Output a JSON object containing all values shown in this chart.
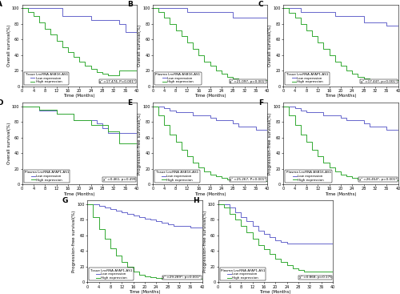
{
  "panels": [
    {
      "label": "A",
      "title_box": "Tissue LncRNA ASB16-AS1",
      "legend_low": "Low expression",
      "legend_high": "High expression",
      "stat": "χ² =17.474, P=0.001*",
      "ylabel": "Overall survival(%)",
      "xlabel": "Time (Months)",
      "xlim": [
        0,
        40
      ],
      "ylim": [
        0,
        105
      ],
      "low_x": [
        0,
        2,
        4,
        12,
        14,
        22,
        24,
        32,
        34,
        36,
        40
      ],
      "low_y": [
        100,
        100,
        100,
        100,
        90,
        90,
        85,
        85,
        80,
        70,
        70
      ],
      "high_x": [
        0,
        2,
        4,
        6,
        8,
        10,
        12,
        14,
        16,
        18,
        20,
        22,
        24,
        26,
        28,
        30,
        32,
        34,
        40
      ],
      "high_y": [
        100,
        95,
        90,
        82,
        74,
        66,
        58,
        50,
        44,
        38,
        32,
        26,
        22,
        18,
        16,
        14,
        14,
        20,
        20
      ]
    },
    {
      "label": "B",
      "title_box": "Plasma LncRNA ASB16-AS1",
      "legend_low": "Low expression",
      "legend_high": "High expression",
      "stat": "χ² =21.097, p=0.001*",
      "ylabel": "Overall survival(%)",
      "xlabel": "Time (Months)",
      "xlim": [
        0,
        40
      ],
      "ylim": [
        0,
        105
      ],
      "low_x": [
        0,
        10,
        12,
        26,
        28,
        40
      ],
      "low_y": [
        100,
        100,
        95,
        95,
        88,
        88
      ],
      "high_x": [
        0,
        2,
        4,
        6,
        8,
        10,
        12,
        14,
        16,
        18,
        20,
        22,
        24,
        26,
        28,
        30,
        34,
        40
      ],
      "high_y": [
        100,
        95,
        88,
        80,
        72,
        64,
        56,
        48,
        40,
        32,
        26,
        20,
        16,
        12,
        10,
        8,
        8,
        8
      ]
    },
    {
      "label": "C",
      "title_box": "Tissue LncRNA AFAP1-AS1",
      "legend_low": "Low expression",
      "legend_high": "High expression",
      "stat": "χ² =17.447, p=0.001*",
      "ylabel": "Overall survival(%)",
      "xlabel": "Time (Months)",
      "xlim": [
        0,
        40
      ],
      "ylim": [
        0,
        105
      ],
      "low_x": [
        0,
        4,
        6,
        16,
        18,
        26,
        28,
        34,
        36,
        40
      ],
      "low_y": [
        100,
        100,
        95,
        95,
        90,
        90,
        82,
        82,
        78,
        78
      ],
      "high_x": [
        0,
        2,
        4,
        6,
        8,
        10,
        12,
        14,
        16,
        18,
        20,
        22,
        24,
        26,
        28,
        30,
        32,
        40
      ],
      "high_y": [
        100,
        94,
        88,
        80,
        72,
        64,
        56,
        48,
        40,
        32,
        26,
        20,
        16,
        12,
        10,
        8,
        8,
        8
      ]
    },
    {
      "label": "D",
      "title_box": "Plasma LncRNA AFAP1-AS1",
      "legend_low": "Low expression",
      "legend_high": "High expression",
      "stat": "χ² =0.461, p=0.499",
      "ylabel": "Overall survival(%)",
      "xlabel": "Time (Months)",
      "xlim": [
        0,
        40
      ],
      "ylim": [
        0,
        105
      ],
      "low_x": [
        0,
        4,
        6,
        10,
        12,
        16,
        18,
        24,
        26,
        28,
        30,
        34,
        40
      ],
      "low_y": [
        100,
        100,
        95,
        95,
        90,
        90,
        82,
        82,
        78,
        72,
        66,
        66,
        62
      ],
      "high_x": [
        0,
        4,
        6,
        10,
        12,
        16,
        18,
        22,
        24,
        28,
        30,
        34,
        40
      ],
      "high_y": [
        100,
        100,
        96,
        96,
        90,
        90,
        82,
        82,
        76,
        76,
        68,
        52,
        42
      ]
    },
    {
      "label": "E",
      "title_box": "Tissue LncRNA ASB16-AS1",
      "legend_low": "Low expression",
      "legend_high": "High expression",
      "stat": "χ² =25.267, P=0.001*",
      "ylabel": "Progression-free survival(%)",
      "xlabel": "Time (Months)",
      "xlim": [
        0,
        40
      ],
      "ylim": [
        0,
        105
      ],
      "low_x": [
        0,
        2,
        4,
        6,
        8,
        12,
        14,
        18,
        20,
        22,
        26,
        28,
        30,
        34,
        36,
        40
      ],
      "low_y": [
        100,
        100,
        98,
        95,
        92,
        92,
        88,
        88,
        85,
        82,
        82,
        78,
        74,
        74,
        70,
        70
      ],
      "high_x": [
        0,
        2,
        4,
        6,
        8,
        10,
        12,
        14,
        16,
        18,
        20,
        22,
        24,
        26,
        28,
        30,
        34,
        40
      ],
      "high_y": [
        100,
        88,
        76,
        64,
        54,
        44,
        36,
        28,
        22,
        16,
        12,
        10,
        8,
        6,
        5,
        4,
        4,
        4
      ]
    },
    {
      "label": "F",
      "title_box": "Plasma LncRNA ASB16-AS1",
      "legend_low": "Low expression",
      "legend_high": "High expression",
      "stat": "χ² =26.454*, p=0.001*",
      "ylabel": "Progression-free survival(%)",
      "xlabel": "Time (Months)",
      "xlim": [
        0,
        40
      ],
      "ylim": [
        0,
        105
      ],
      "low_x": [
        0,
        2,
        4,
        6,
        8,
        12,
        14,
        18,
        20,
        22,
        26,
        28,
        30,
        34,
        36,
        40
      ],
      "low_y": [
        100,
        100,
        98,
        95,
        92,
        92,
        88,
        88,
        85,
        82,
        82,
        78,
        74,
        74,
        70,
        70
      ],
      "high_x": [
        0,
        2,
        4,
        6,
        8,
        10,
        12,
        14,
        16,
        18,
        20,
        22,
        24,
        26,
        28,
        30,
        34,
        40
      ],
      "high_y": [
        100,
        88,
        76,
        64,
        54,
        44,
        36,
        28,
        22,
        16,
        12,
        10,
        8,
        6,
        5,
        5,
        5,
        5
      ]
    },
    {
      "label": "G",
      "title_box": "Tissue LncRNA AFAP1-AS1",
      "legend_low": "Low expression",
      "legend_high": "High expression",
      "stat": "χ² =29.289*, p=0.001*",
      "ylabel": "Progression-free survival(%)",
      "xlabel": "Time (Months)",
      "xlim": [
        0,
        40
      ],
      "ylim": [
        0,
        105
      ],
      "low_x": [
        0,
        2,
        4,
        6,
        8,
        10,
        12,
        14,
        16,
        18,
        20,
        22,
        24,
        26,
        28,
        30,
        32,
        34,
        36,
        40
      ],
      "low_y": [
        100,
        100,
        98,
        96,
        94,
        92,
        90,
        88,
        86,
        84,
        82,
        80,
        78,
        76,
        74,
        72,
        72,
        72,
        70,
        70
      ],
      "high_x": [
        0,
        2,
        4,
        6,
        8,
        10,
        12,
        14,
        16,
        18,
        20,
        22,
        24,
        26,
        28,
        30,
        34,
        40
      ],
      "high_y": [
        100,
        84,
        68,
        56,
        44,
        34,
        26,
        20,
        14,
        10,
        8,
        6,
        5,
        4,
        4,
        4,
        4,
        4
      ]
    },
    {
      "label": "H",
      "title_box": "Plasma LncRNA AFAP1-AS1",
      "legend_low": "Low expression",
      "legend_high": "High expression",
      "stat": "χ² =0.868, p=0.175",
      "ylabel": "Progression-free survival(%)",
      "xlabel": "Time (Months)",
      "xlim": [
        0,
        40
      ],
      "ylim": [
        0,
        105
      ],
      "low_x": [
        0,
        2,
        4,
        6,
        8,
        10,
        12,
        14,
        16,
        18,
        20,
        22,
        24,
        26,
        28,
        30,
        34,
        40
      ],
      "low_y": [
        100,
        100,
        96,
        90,
        84,
        78,
        72,
        66,
        62,
        58,
        54,
        52,
        50,
        50,
        50,
        50,
        50,
        50
      ],
      "high_x": [
        0,
        2,
        4,
        6,
        8,
        10,
        12,
        14,
        16,
        18,
        20,
        22,
        24,
        26,
        28,
        30,
        34,
        40
      ],
      "high_y": [
        100,
        96,
        88,
        80,
        72,
        64,
        56,
        48,
        42,
        36,
        30,
        26,
        22,
        18,
        16,
        14,
        14,
        14
      ]
    }
  ],
  "color_low": "#6666cc",
  "color_high": "#33aa33",
  "bg_color": "#ffffff",
  "tick_fontsize": 3.5,
  "label_fontsize": 4.0,
  "legend_fontsize": 3.0,
  "stat_fontsize": 3.0,
  "linewidth": 0.7
}
